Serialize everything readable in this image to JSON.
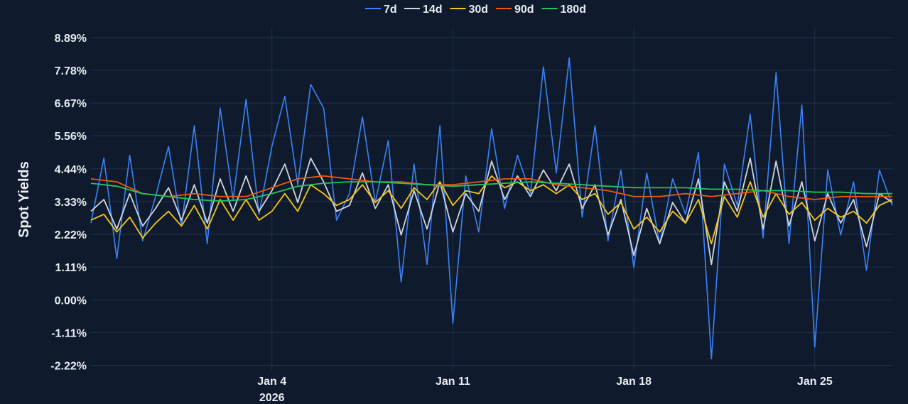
{
  "chart_data": {
    "type": "line",
    "title": "",
    "xlabel": "",
    "ylabel": "Spot Yields",
    "x_range": [
      "2025-12-28T00:00",
      "2026-01-28T00:00"
    ],
    "ylim": [
      -2.4,
      9.2
    ],
    "y_ticks": [
      {
        "value": 8.89,
        "label": "8.89%"
      },
      {
        "value": 7.78,
        "label": "7.78%"
      },
      {
        "value": 6.67,
        "label": "6.67%"
      },
      {
        "value": 5.56,
        "label": "5.56%"
      },
      {
        "value": 4.44,
        "label": "4.44%"
      },
      {
        "value": 3.33,
        "label": "3.33%"
      },
      {
        "value": 2.22,
        "label": "2.22%"
      },
      {
        "value": 1.11,
        "label": "1.11%"
      },
      {
        "value": 0.0,
        "label": "0.00%"
      },
      {
        "value": -1.11,
        "label": "-1.11%"
      },
      {
        "value": -2.22,
        "label": "-2.22%"
      }
    ],
    "x_ticks": [
      {
        "value": "2026-01-04",
        "label": "Jan 4",
        "sublabel": "2026"
      },
      {
        "value": "2026-01-11",
        "label": "Jan 11"
      },
      {
        "value": "2026-01-18",
        "label": "Jan 18"
      },
      {
        "value": "2026-01-25",
        "label": "Jan 25"
      }
    ],
    "grid": true,
    "legend": "top-center",
    "series": [
      {
        "name": "7d",
        "color": "#3b82f6",
        "x": [
          "2025-12-28",
          "2025-12-28T12:00",
          "2025-12-29",
          "2025-12-29T12:00",
          "2025-12-30",
          "2025-12-30T12:00",
          "2025-12-31",
          "2025-12-31T12:00",
          "2026-01-01",
          "2026-01-01T12:00",
          "2026-01-02",
          "2026-01-02T12:00",
          "2026-01-03",
          "2026-01-03T12:00",
          "2026-01-04",
          "2026-01-04T12:00",
          "2026-01-05",
          "2026-01-05T12:00",
          "2026-01-06",
          "2026-01-06T12:00",
          "2026-01-07",
          "2026-01-07T12:00",
          "2026-01-08",
          "2026-01-08T12:00",
          "2026-01-09",
          "2026-01-09T12:00",
          "2026-01-10",
          "2026-01-10T12:00",
          "2026-01-11",
          "2026-01-11T12:00",
          "2026-01-12",
          "2026-01-12T12:00",
          "2026-01-13",
          "2026-01-13T12:00",
          "2026-01-14",
          "2026-01-14T12:00",
          "2026-01-15",
          "2026-01-15T12:00",
          "2026-01-16",
          "2026-01-16T12:00",
          "2026-01-17",
          "2026-01-17T12:00",
          "2026-01-18",
          "2026-01-18T12:00",
          "2026-01-19",
          "2026-01-19T12:00",
          "2026-01-20",
          "2026-01-20T12:00",
          "2026-01-21",
          "2026-01-21T12:00",
          "2026-01-22",
          "2026-01-22T12:00",
          "2026-01-23",
          "2026-01-23T12:00",
          "2026-01-24",
          "2026-01-24T12:00",
          "2026-01-25",
          "2026-01-25T12:00",
          "2026-01-26",
          "2026-01-26T12:00",
          "2026-01-27",
          "2026-01-27T12:00",
          "2026-01-28"
        ],
        "values": [
          2.6,
          4.8,
          1.4,
          4.9,
          2.0,
          3.5,
          5.2,
          2.5,
          5.9,
          1.9,
          6.5,
          3.4,
          6.8,
          2.9,
          5.2,
          6.9,
          3.9,
          7.3,
          6.5,
          2.7,
          3.6,
          6.2,
          3.3,
          5.4,
          0.6,
          4.6,
          1.2,
          5.9,
          -0.8,
          4.2,
          2.3,
          5.8,
          3.1,
          4.9,
          3.6,
          7.9,
          4.3,
          8.2,
          2.8,
          5.9,
          2.0,
          4.4,
          1.1,
          4.3,
          1.9,
          4.1,
          2.9,
          5.0,
          -2.0,
          4.6,
          3.2,
          6.3,
          2.1,
          7.7,
          1.9,
          6.6,
          -1.6,
          4.4,
          2.2,
          4.0,
          1.0,
          4.4,
          3.2
        ]
      },
      {
        "name": "14d",
        "color": "#cfd5de",
        "x": [
          "2025-12-28",
          "2025-12-28T12:00",
          "2025-12-29",
          "2025-12-29T12:00",
          "2025-12-30",
          "2025-12-30T12:00",
          "2025-12-31",
          "2025-12-31T12:00",
          "2026-01-01",
          "2026-01-01T12:00",
          "2026-01-02",
          "2026-01-02T12:00",
          "2026-01-03",
          "2026-01-03T12:00",
          "2026-01-04",
          "2026-01-04T12:00",
          "2026-01-05",
          "2026-01-05T12:00",
          "2026-01-06",
          "2026-01-06T12:00",
          "2026-01-07",
          "2026-01-07T12:00",
          "2026-01-08",
          "2026-01-08T12:00",
          "2026-01-09",
          "2026-01-09T12:00",
          "2026-01-10",
          "2026-01-10T12:00",
          "2026-01-11",
          "2026-01-11T12:00",
          "2026-01-12",
          "2026-01-12T12:00",
          "2026-01-13",
          "2026-01-13T12:00",
          "2026-01-14",
          "2026-01-14T12:00",
          "2026-01-15",
          "2026-01-15T12:00",
          "2026-01-16",
          "2026-01-16T12:00",
          "2026-01-17",
          "2026-01-17T12:00",
          "2026-01-18",
          "2026-01-18T12:00",
          "2026-01-19",
          "2026-01-19T12:00",
          "2026-01-20",
          "2026-01-20T12:00",
          "2026-01-21",
          "2026-01-21T12:00",
          "2026-01-22",
          "2026-01-22T12:00",
          "2026-01-23",
          "2026-01-23T12:00",
          "2026-01-24",
          "2026-01-24T12:00",
          "2026-01-25",
          "2026-01-25T12:00",
          "2026-01-26",
          "2026-01-26T12:00",
          "2026-01-27",
          "2026-01-27T12:00",
          "2026-01-28"
        ],
        "values": [
          3.0,
          3.4,
          2.4,
          3.6,
          2.5,
          3.1,
          3.8,
          2.7,
          3.9,
          2.6,
          4.1,
          3.0,
          4.2,
          3.0,
          3.7,
          4.6,
          3.3,
          4.8,
          4.0,
          3.0,
          3.2,
          4.3,
          3.1,
          3.9,
          2.2,
          3.7,
          2.4,
          4.0,
          2.3,
          3.6,
          3.0,
          4.7,
          3.4,
          4.2,
          3.5,
          4.4,
          3.7,
          4.6,
          3.1,
          3.9,
          2.2,
          3.4,
          1.5,
          3.1,
          1.9,
          3.3,
          2.6,
          4.1,
          1.2,
          4.0,
          3.0,
          4.8,
          2.4,
          4.7,
          2.5,
          4.0,
          2.0,
          3.6,
          2.6,
          3.4,
          1.8,
          3.6,
          3.3
        ]
      },
      {
        "name": "30d",
        "color": "#f5c518",
        "x": [
          "2025-12-28",
          "2025-12-28T12:00",
          "2025-12-29",
          "2025-12-29T12:00",
          "2025-12-30",
          "2025-12-30T12:00",
          "2025-12-31",
          "2025-12-31T12:00",
          "2026-01-01",
          "2026-01-01T12:00",
          "2026-01-02",
          "2026-01-02T12:00",
          "2026-01-03",
          "2026-01-03T12:00",
          "2026-01-04",
          "2026-01-04T12:00",
          "2026-01-05",
          "2026-01-05T12:00",
          "2026-01-06",
          "2026-01-06T12:00",
          "2026-01-07",
          "2026-01-07T12:00",
          "2026-01-08",
          "2026-01-08T12:00",
          "2026-01-09",
          "2026-01-09T12:00",
          "2026-01-10",
          "2026-01-10T12:00",
          "2026-01-11",
          "2026-01-11T12:00",
          "2026-01-12",
          "2026-01-12T12:00",
          "2026-01-13",
          "2026-01-13T12:00",
          "2026-01-14",
          "2026-01-14T12:00",
          "2026-01-15",
          "2026-01-15T12:00",
          "2026-01-16",
          "2026-01-16T12:00",
          "2026-01-17",
          "2026-01-17T12:00",
          "2026-01-18",
          "2026-01-18T12:00",
          "2026-01-19",
          "2026-01-19T12:00",
          "2026-01-20",
          "2026-01-20T12:00",
          "2026-01-21",
          "2026-01-21T12:00",
          "2026-01-22",
          "2026-01-22T12:00",
          "2026-01-23",
          "2026-01-23T12:00",
          "2026-01-24",
          "2026-01-24T12:00",
          "2026-01-25",
          "2026-01-25T12:00",
          "2026-01-26",
          "2026-01-26T12:00",
          "2026-01-27",
          "2026-01-27T12:00",
          "2026-01-28"
        ],
        "values": [
          2.7,
          2.9,
          2.3,
          2.8,
          2.1,
          2.6,
          3.0,
          2.5,
          3.2,
          2.4,
          3.4,
          2.7,
          3.4,
          2.7,
          3.0,
          3.6,
          3.0,
          3.9,
          3.6,
          3.2,
          3.4,
          3.9,
          3.3,
          3.7,
          3.1,
          3.8,
          3.4,
          4.0,
          3.2,
          3.7,
          3.6,
          4.2,
          3.8,
          4.0,
          3.7,
          3.9,
          3.6,
          3.9,
          3.4,
          3.6,
          2.9,
          3.3,
          2.4,
          2.8,
          2.3,
          3.0,
          2.6,
          3.4,
          1.9,
          3.5,
          2.8,
          4.0,
          2.8,
          3.6,
          2.9,
          3.3,
          2.7,
          3.1,
          2.8,
          3.0,
          2.6,
          3.2,
          3.4
        ]
      },
      {
        "name": "90d",
        "color": "#ea580c",
        "x": [
          "2025-12-28",
          "2025-12-29",
          "2025-12-30",
          "2025-12-31",
          "2026-01-01",
          "2026-01-02",
          "2026-01-03",
          "2026-01-04",
          "2026-01-05",
          "2026-01-06",
          "2026-01-07",
          "2026-01-08",
          "2026-01-09",
          "2026-01-10",
          "2026-01-11",
          "2026-01-12",
          "2026-01-13",
          "2026-01-14",
          "2026-01-15",
          "2026-01-16",
          "2026-01-17",
          "2026-01-18",
          "2026-01-19",
          "2026-01-20",
          "2026-01-21",
          "2026-01-22",
          "2026-01-23",
          "2026-01-24",
          "2026-01-25",
          "2026-01-26",
          "2026-01-27",
          "2026-01-28"
        ],
        "values": [
          4.1,
          4.0,
          3.6,
          3.5,
          3.6,
          3.5,
          3.5,
          3.8,
          4.1,
          4.2,
          4.1,
          4.0,
          4.0,
          3.9,
          3.9,
          4.0,
          4.1,
          4.1,
          3.9,
          3.8,
          3.7,
          3.5,
          3.5,
          3.6,
          3.5,
          3.6,
          3.7,
          3.5,
          3.4,
          3.5,
          3.5,
          3.5
        ]
      },
      {
        "name": "180d",
        "color": "#22c55e",
        "x": [
          "2025-12-28",
          "2025-12-29",
          "2025-12-30",
          "2025-12-31",
          "2026-01-01",
          "2026-01-02",
          "2026-01-03",
          "2026-01-04",
          "2026-01-05",
          "2026-01-06",
          "2026-01-07",
          "2026-01-08",
          "2026-01-09",
          "2026-01-10",
          "2026-01-11",
          "2026-01-12",
          "2026-01-13",
          "2026-01-14",
          "2026-01-15",
          "2026-01-16",
          "2026-01-17",
          "2026-01-18",
          "2026-01-19",
          "2026-01-20",
          "2026-01-21",
          "2026-01-22",
          "2026-01-23",
          "2026-01-24",
          "2026-01-25",
          "2026-01-26",
          "2026-01-27",
          "2026-01-28"
        ],
        "values": [
          3.95,
          3.85,
          3.6,
          3.5,
          3.4,
          3.35,
          3.4,
          3.6,
          3.85,
          3.95,
          4.0,
          4.0,
          3.95,
          3.9,
          3.85,
          3.9,
          3.95,
          4.0,
          3.95,
          3.9,
          3.85,
          3.8,
          3.8,
          3.8,
          3.75,
          3.75,
          3.7,
          3.7,
          3.65,
          3.65,
          3.6,
          3.6
        ]
      }
    ]
  }
}
